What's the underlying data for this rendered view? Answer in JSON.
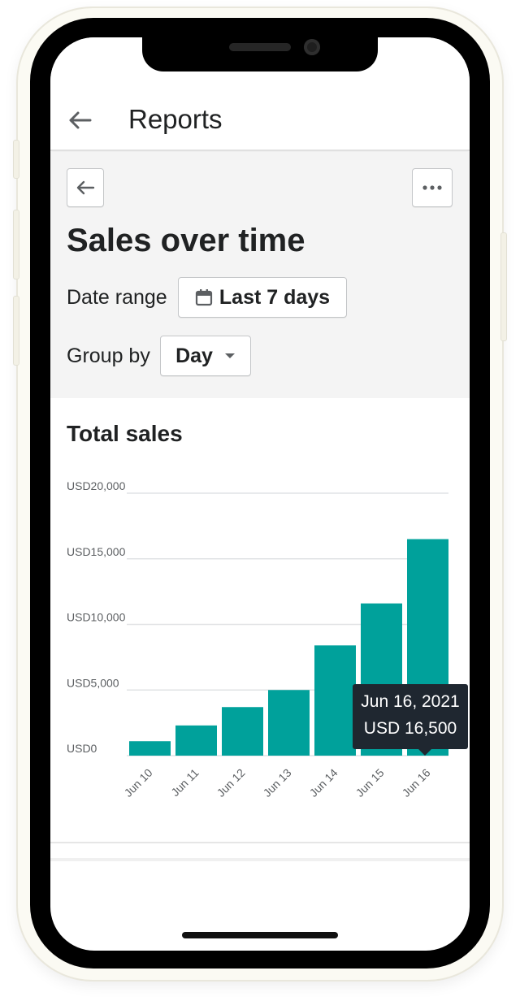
{
  "app_bar": {
    "title": "Reports"
  },
  "report": {
    "title": "Sales over time",
    "date_range_label": "Date range",
    "date_range_value": "Last 7 days",
    "group_by_label": "Group by",
    "group_by_value": "Day"
  },
  "card": {
    "title": "Total sales"
  },
  "tooltip": {
    "date": "Jun 16, 2021",
    "value": "USD 16,500"
  },
  "colors": {
    "bar": "#00a19b",
    "grid": "#e1e3e5",
    "tooltip_bg": "#1f2730"
  },
  "icons": [
    "arrow-left-icon",
    "more-horizontal-icon",
    "calendar-icon",
    "caret-down-icon"
  ],
  "chart_data": {
    "type": "bar",
    "title": "Total sales",
    "categories": [
      "Jun 10",
      "Jun 11",
      "Jun 12",
      "Jun 13",
      "Jun 14",
      "Jun 15",
      "Jun 16"
    ],
    "values": [
      1100,
      2300,
      3700,
      5000,
      8400,
      11600,
      16500
    ],
    "ylim": [
      0,
      20000
    ],
    "y_ticks": [
      {
        "value": 0,
        "label": "USD0"
      },
      {
        "value": 5000,
        "label": "USD5,000"
      },
      {
        "value": 10000,
        "label": "USD10,000"
      },
      {
        "value": 15000,
        "label": "USD15,000"
      },
      {
        "value": 20000,
        "label": "USD20,000"
      }
    ],
    "grid": true,
    "highlight_index": 6
  }
}
